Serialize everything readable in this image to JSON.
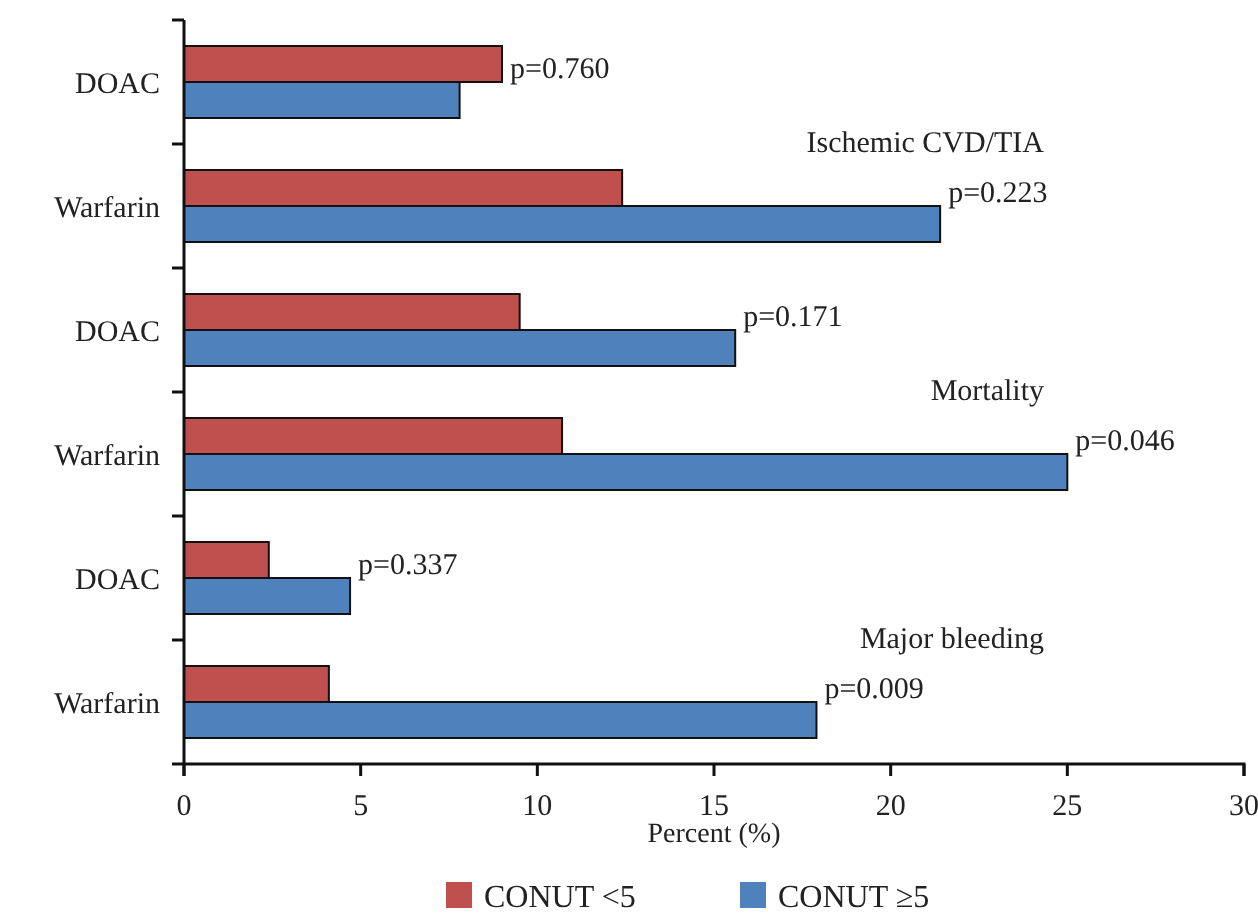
{
  "chart_data": {
    "type": "bar",
    "orientation": "horizontal",
    "categories": [
      "DOAC",
      "Warfarin",
      "DOAC",
      "Warfarin",
      "DOAC",
      "Warfarin"
    ],
    "series": [
      {
        "name": "CONUT <5",
        "color": "#c0504d",
        "values": [
          9.0,
          12.4,
          9.5,
          10.7,
          2.4,
          4.1
        ]
      },
      {
        "name": "CONUT ≥5",
        "color": "#4f81bd",
        "values": [
          7.8,
          21.4,
          15.6,
          25.0,
          4.7,
          17.9
        ]
      }
    ],
    "xlim": [
      0,
      30
    ],
    "xticks": [
      0,
      5,
      10,
      15,
      20,
      25,
      30
    ],
    "xlabel": "Percent (%)",
    "grid": false,
    "legend": "bottom",
    "annotations": [
      "p=0.760",
      "Ischemic CVD/TIA",
      "p=0.223",
      "p=0.171",
      "Mortality",
      "p=0.046",
      "p=0.337",
      "Major bleeding",
      "p=0.009"
    ]
  }
}
